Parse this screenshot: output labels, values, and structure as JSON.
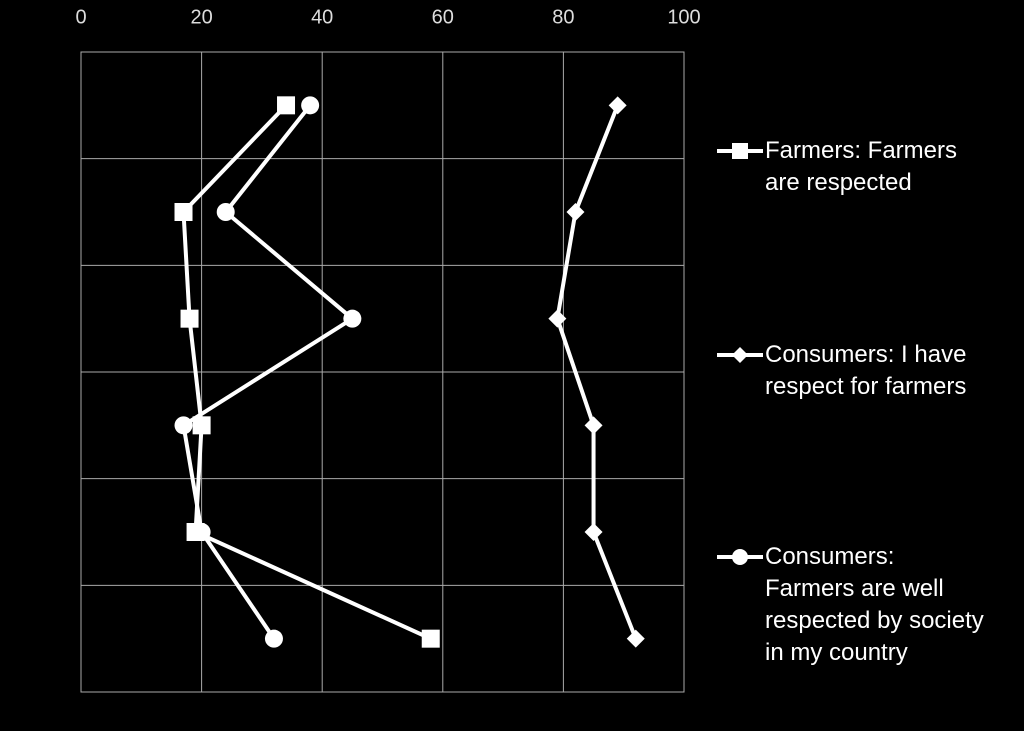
{
  "chart_data": {
    "type": "line",
    "categories": [
      null,
      null,
      null,
      null,
      null,
      null
    ],
    "series": [
      {
        "name": "Farmers: Farmers are respected",
        "color": "#ffffff",
        "marker": "square",
        "values": [
          34,
          17,
          18,
          20,
          19,
          58
        ]
      },
      {
        "name": "Consumers: I have respect for farmers",
        "color": "#ffffff",
        "marker": "diamond",
        "values": [
          89,
          82,
          79,
          85,
          85,
          92
        ]
      },
      {
        "name": "Consumers: Farmers are well respected by society in my country",
        "color": "#ffffff",
        "marker": "circle",
        "values": [
          38,
          24,
          45,
          17,
          20,
          32
        ]
      }
    ],
    "xlim": [
      0,
      100
    ],
    "xticks": [
      0,
      20,
      40,
      60,
      80,
      100
    ],
    "grid": true
  }
}
